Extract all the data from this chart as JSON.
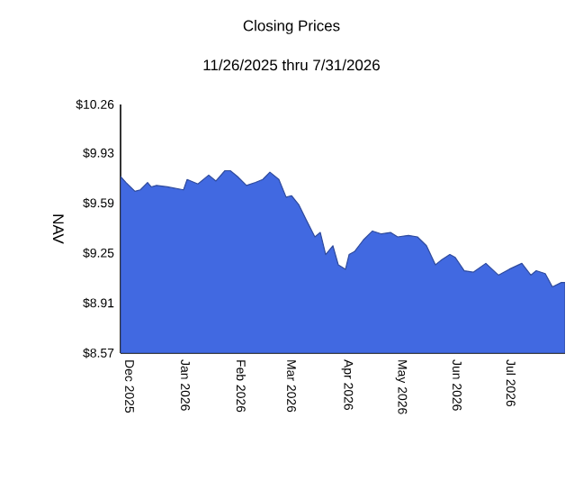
{
  "chart_data": {
    "type": "area",
    "title": "Closing Prices",
    "subtitle": "11/26/2025 thru 7/31/2026",
    "ylabel": "NAV",
    "x": [
      "2025-11-26",
      "2025-11-29",
      "2025-12-04",
      "2025-12-07",
      "2025-12-11",
      "2025-12-13",
      "2025-12-16",
      "2025-12-22",
      "2025-12-31",
      "2026-01-02",
      "2026-01-08",
      "2026-01-14",
      "2026-01-18",
      "2026-01-23",
      "2026-01-26",
      "2026-01-30",
      "2026-02-04",
      "2026-02-09",
      "2026-02-13",
      "2026-02-17",
      "2026-02-22",
      "2026-02-26",
      "2026-03-01",
      "2026-03-05",
      "2026-03-09",
      "2026-03-14",
      "2026-03-17",
      "2026-03-20",
      "2026-03-24",
      "2026-03-27",
      "2026-03-31",
      "2026-04-02",
      "2026-04-05",
      "2026-04-10",
      "2026-04-15",
      "2026-04-20",
      "2026-04-25",
      "2026-04-29",
      "2026-05-05",
      "2026-05-10",
      "2026-05-15",
      "2026-05-20",
      "2026-05-23",
      "2026-05-28",
      "2026-05-31",
      "2026-06-05",
      "2026-06-10",
      "2026-06-17",
      "2026-06-24",
      "2026-06-30",
      "2026-07-07",
      "2026-07-12",
      "2026-07-15",
      "2026-07-20",
      "2026-07-24",
      "2026-07-29",
      "2026-07-31"
    ],
    "values": [
      9.77,
      9.73,
      9.67,
      9.68,
      9.73,
      9.7,
      9.71,
      9.7,
      9.68,
      9.75,
      9.72,
      9.78,
      9.74,
      9.81,
      9.81,
      9.77,
      9.71,
      9.73,
      9.75,
      9.8,
      9.75,
      9.63,
      9.64,
      9.58,
      9.48,
      9.36,
      9.39,
      9.24,
      9.3,
      9.17,
      9.14,
      9.24,
      9.26,
      9.34,
      9.4,
      9.38,
      9.39,
      9.36,
      9.37,
      9.36,
      9.3,
      9.17,
      9.2,
      9.24,
      9.22,
      9.13,
      9.12,
      9.18,
      9.1,
      9.14,
      9.18,
      9.1,
      9.13,
      9.11,
      9.02,
      9.05,
      9.05
    ],
    "color": "#4169e1",
    "xlim": [
      "2025-11-26",
      "2026-07-31"
    ],
    "xticks": [
      {
        "value": "2025-12-01",
        "label": "Dec 2025"
      },
      {
        "value": "2026-01-01",
        "label": "Jan 2026"
      },
      {
        "value": "2026-02-01",
        "label": "Feb 2026"
      },
      {
        "value": "2026-03-01",
        "label": "Mar 2026"
      },
      {
        "value": "2026-04-01",
        "label": "Apr 2026"
      },
      {
        "value": "2026-05-01",
        "label": "May 2026"
      },
      {
        "value": "2026-06-01",
        "label": "Jun 2026"
      },
      {
        "value": "2026-07-01",
        "label": "Jul 2026"
      }
    ],
    "ylim": [
      8.57,
      10.26
    ],
    "yticks": [
      {
        "value": 8.57,
        "label": "$8.57"
      },
      {
        "value": 8.91,
        "label": "$8.91"
      },
      {
        "value": 9.25,
        "label": "$9.25"
      },
      {
        "value": 9.59,
        "label": "$9.59"
      },
      {
        "value": 9.93,
        "label": "$9.93"
      },
      {
        "value": 10.26,
        "label": "$10.26"
      }
    ],
    "data_labels": false
  }
}
